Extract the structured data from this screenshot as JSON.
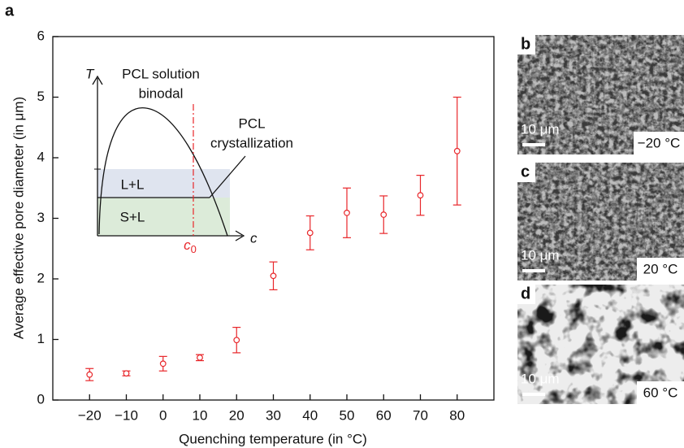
{
  "figure_label": "a",
  "chart_data": {
    "type": "scatter",
    "xlabel": "Quenching temperature (in °C)",
    "ylabel": "Average effective pore diameter (in μm)",
    "x": [
      -20,
      -10,
      0,
      10,
      20,
      30,
      40,
      50,
      60,
      70,
      80
    ],
    "values": [
      0.42,
      0.44,
      0.6,
      0.7,
      0.99,
      2.05,
      2.76,
      3.09,
      3.06,
      3.38,
      4.11
    ],
    "errors": [
      0.1,
      0.04,
      0.12,
      0.05,
      0.21,
      0.23,
      0.28,
      0.41,
      0.31,
      0.33,
      0.89
    ],
    "color": "#e8262a",
    "xlim": [
      -30,
      90
    ],
    "xticks": [
      {
        "value": -20,
        "label": "−20"
      },
      {
        "value": -10,
        "label": "−10"
      },
      0,
      10,
      20,
      30,
      40,
      50,
      60,
      70,
      80
    ],
    "ylim": [
      0,
      6
    ],
    "yticks": [
      0,
      1,
      2,
      3,
      4,
      5,
      6
    ],
    "inset": {
      "t_axis": "T",
      "c_axis": "c",
      "binodal": [
        "PCL solution",
        "binodal"
      ],
      "crystallization": [
        "PCL",
        "crystallization"
      ],
      "upper_region": "L+L",
      "lower_region": "S+L",
      "c0": "c",
      "c0_subscript": "0"
    }
  },
  "panels": [
    {
      "label": "b",
      "scale_bar": "10 μm",
      "temperature": "−20 °C"
    },
    {
      "label": "c",
      "scale_bar": "10 μm",
      "temperature": "20 °C"
    },
    {
      "label": "d",
      "scale_bar": "10 μm",
      "temperature": "60 °C"
    }
  ]
}
